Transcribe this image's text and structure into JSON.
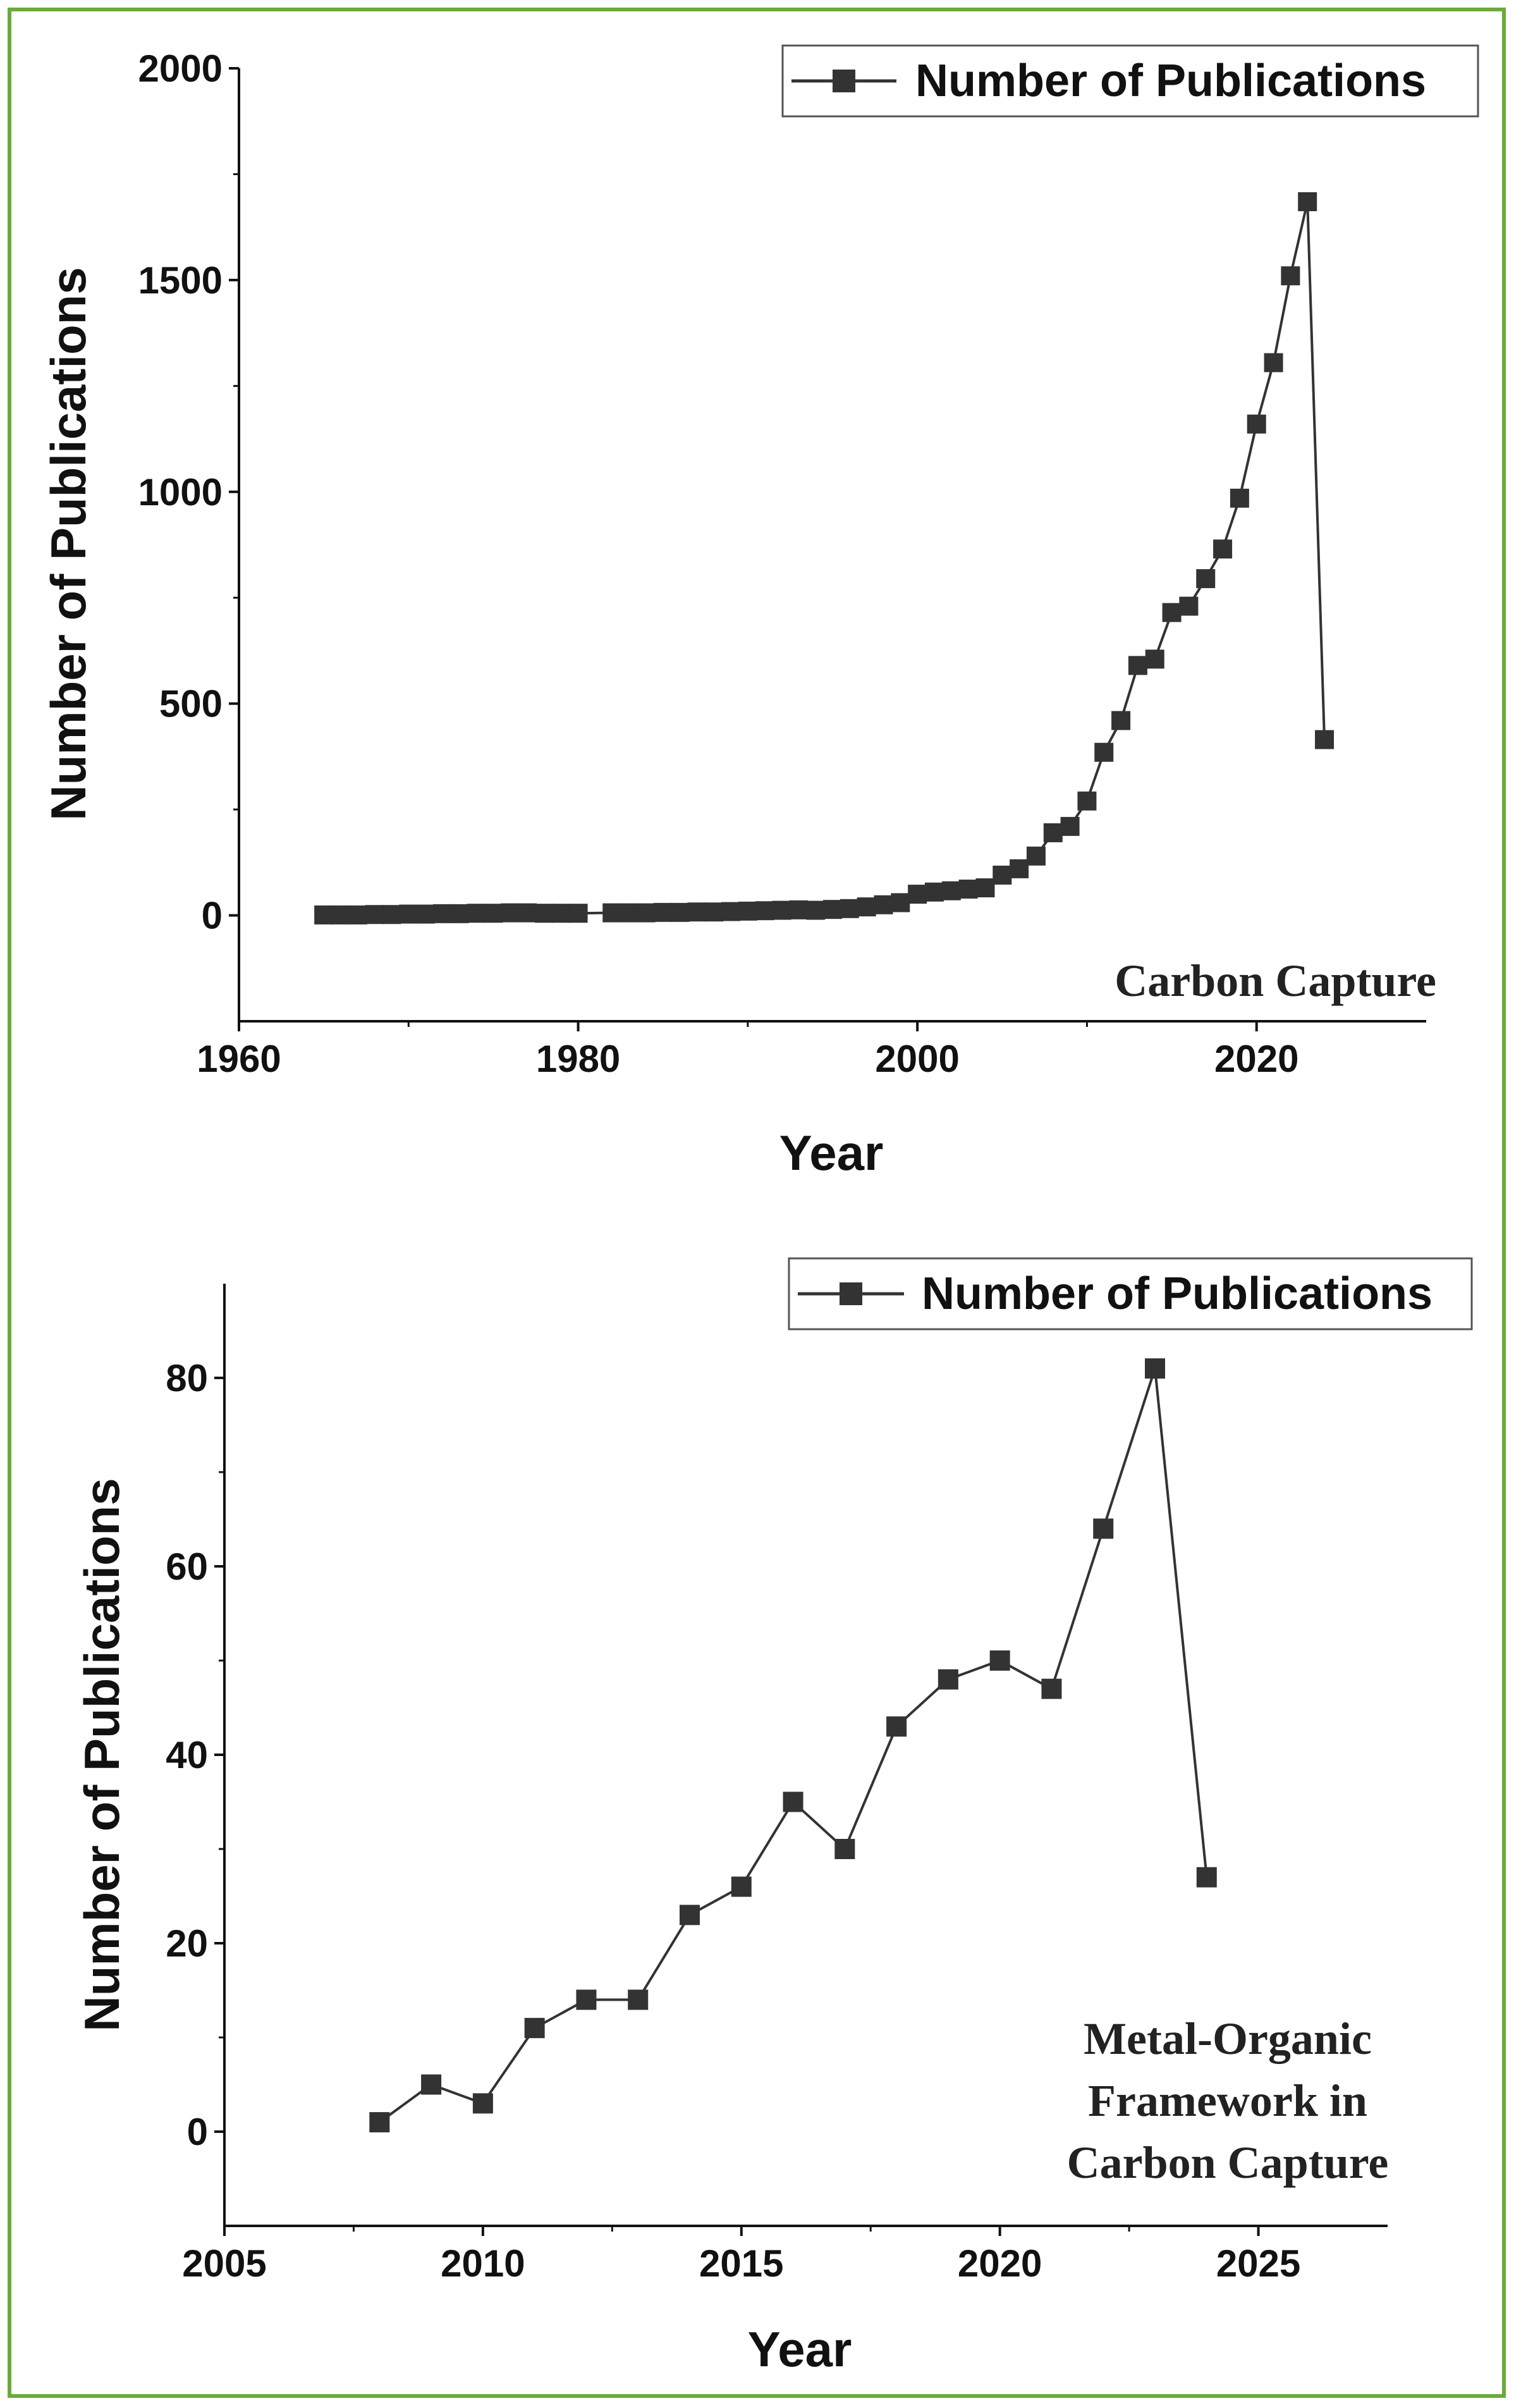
{
  "colors": {
    "border": "#6aaa3a",
    "line": "#333333",
    "marker": "#333333",
    "axis": "#111111"
  },
  "chart_data": [
    {
      "type": "line",
      "xlabel": "Year",
      "ylabel": "Number of Publications",
      "xlim": [
        1960,
        2030
      ],
      "ylim": [
        -250,
        2000
      ],
      "xticks": [
        1960,
        1980,
        2000,
        2020
      ],
      "yticks": [
        0,
        500,
        1000,
        1500,
        2000
      ],
      "legend": "top-right",
      "annotation": "Carbon Capture",
      "series": [
        {
          "name": "Number of Publications",
          "x": [
            1965,
            1966,
            1967,
            1968,
            1969,
            1970,
            1971,
            1972,
            1973,
            1974,
            1975,
            1976,
            1977,
            1978,
            1979,
            1980,
            1982,
            1983,
            1984,
            1985,
            1986,
            1987,
            1988,
            1989,
            1990,
            1991,
            1992,
            1993,
            1994,
            1995,
            1996,
            1997,
            1998,
            1999,
            2000,
            2001,
            2002,
            2003,
            2004,
            2005,
            2006,
            2007,
            2008,
            2009,
            2010,
            2011,
            2012,
            2013,
            2014,
            2015,
            2016,
            2017,
            2018,
            2019,
            2020,
            2021,
            2022,
            2023,
            2024
          ],
          "values": [
            1,
            1,
            1,
            2,
            2,
            3,
            3,
            4,
            4,
            5,
            5,
            6,
            6,
            5,
            5,
            5,
            6,
            6,
            6,
            7,
            7,
            8,
            8,
            9,
            10,
            11,
            12,
            13,
            12,
            14,
            16,
            20,
            25,
            30,
            50,
            55,
            58,
            62,
            65,
            95,
            110,
            140,
            195,
            210,
            270,
            385,
            460,
            590,
            605,
            715,
            730,
            795,
            865,
            985,
            1160,
            1305,
            1510,
            1685,
            415
          ]
        }
      ]
    },
    {
      "type": "line",
      "xlabel": "Year",
      "ylabel": "Number of Publications",
      "xlim": [
        2005,
        2027.5
      ],
      "ylim": [
        -10,
        90
      ],
      "xticks": [
        2005,
        2010,
        2015,
        2020,
        2025
      ],
      "yticks": [
        0,
        20,
        40,
        60,
        80
      ],
      "legend": "top-right",
      "annotation_lines": [
        "Metal-Organic",
        "Framework in",
        "Carbon Capture"
      ],
      "series": [
        {
          "name": "Number of Publications",
          "x": [
            2008,
            2009,
            2010,
            2011,
            2012,
            2013,
            2014,
            2015,
            2016,
            2017,
            2018,
            2019,
            2020,
            2021,
            2022,
            2023,
            2024
          ],
          "values": [
            1,
            5,
            3,
            11,
            14,
            14,
            23,
            26,
            35,
            30,
            43,
            48,
            50,
            47,
            64,
            81,
            27
          ]
        }
      ]
    }
  ]
}
